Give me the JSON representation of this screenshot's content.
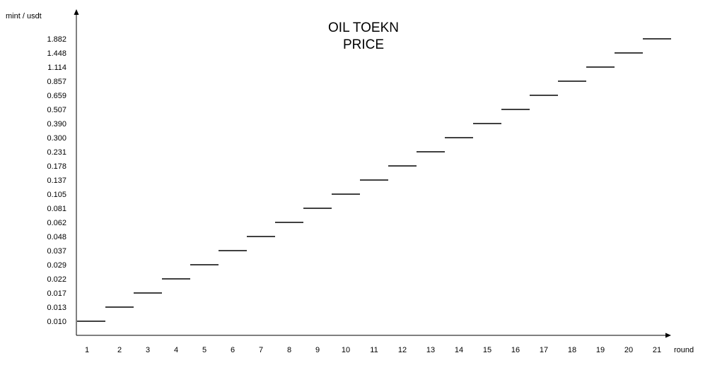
{
  "chart_data": {
    "type": "line",
    "title_lines": [
      "OIL TOEKN",
      "PRICE"
    ],
    "xlabel": "round",
    "ylabel": "mint / usdt",
    "x_ticks": [
      "1",
      "2",
      "3",
      "4",
      "5",
      "6",
      "7",
      "8",
      "9",
      "10",
      "11",
      "12",
      "13",
      "14",
      "15",
      "16",
      "17",
      "18",
      "19",
      "20",
      "21"
    ],
    "y_ticks": [
      "0.010",
      "0.013",
      "0.017",
      "0.022",
      "0.029",
      "0.037",
      "0.048",
      "0.062",
      "0.081",
      "0.105",
      "0.137",
      "0.178",
      "0.231",
      "0.300",
      "0.390",
      "0.507",
      "0.659",
      "0.857",
      "1.114",
      "1.448",
      "1.882"
    ],
    "series": [
      {
        "style": "step",
        "x": [
          1,
          2,
          3,
          4,
          5,
          6,
          7,
          8,
          9,
          10,
          11,
          12,
          13,
          14,
          15,
          16,
          17,
          18,
          19,
          20,
          21
        ],
        "values": [
          0.01,
          0.013,
          0.017,
          0.022,
          0.029,
          0.037,
          0.048,
          0.062,
          0.081,
          0.105,
          0.137,
          0.178,
          0.231,
          0.3,
          0.39,
          0.507,
          0.659,
          0.857,
          1.114,
          1.448,
          1.882
        ]
      }
    ],
    "y_scale": "categorical",
    "grid": false,
    "legend": "none",
    "colors": {
      "line": "#000000",
      "axis": "#000000",
      "text": "#000000"
    }
  }
}
